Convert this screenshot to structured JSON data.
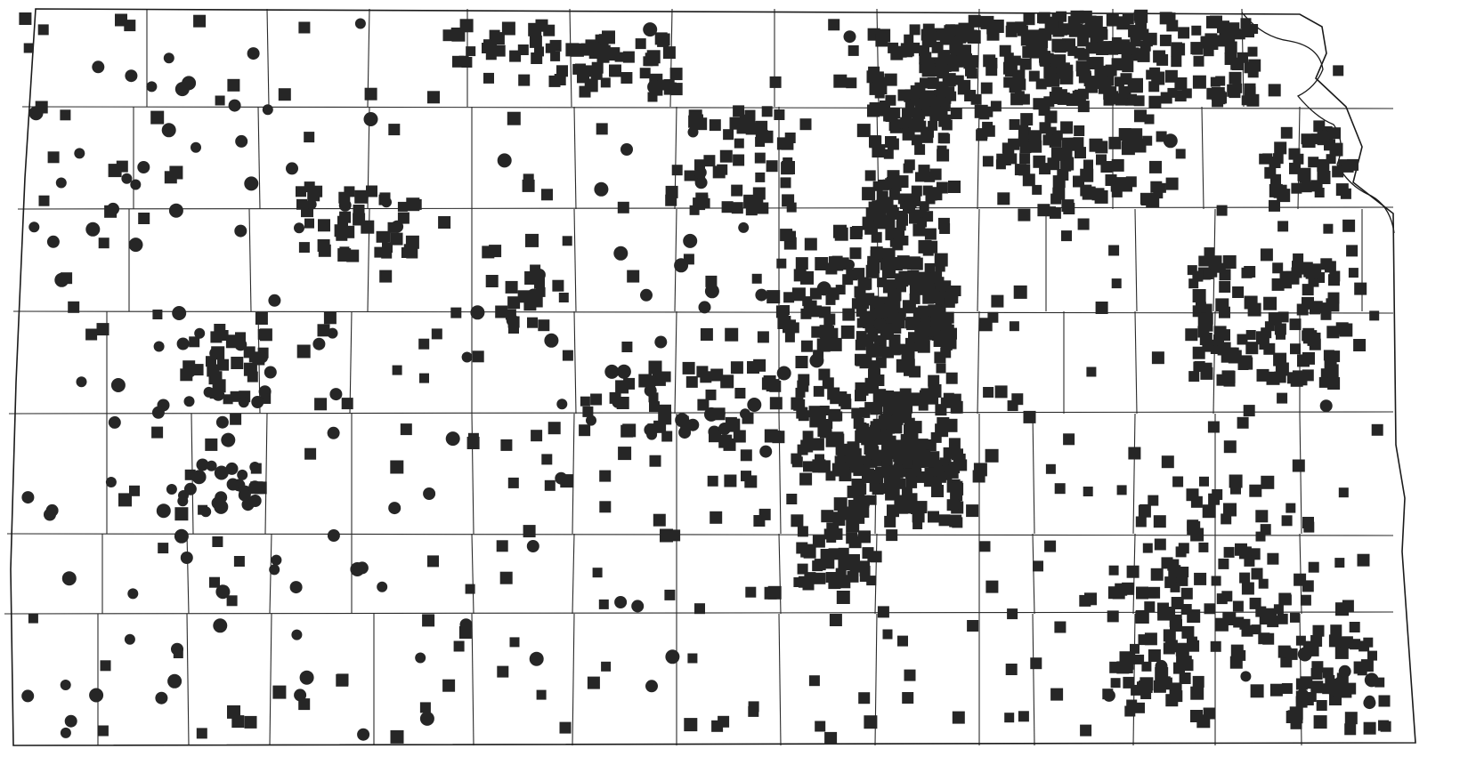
{
  "map": {
    "region": "Kansas",
    "subdivision": "counties",
    "background_color": "#ffffff",
    "line_color": "#2a2a2a",
    "marker_color": "#262626",
    "marker_types": [
      "square",
      "circle"
    ],
    "legend": null,
    "title": ""
  }
}
